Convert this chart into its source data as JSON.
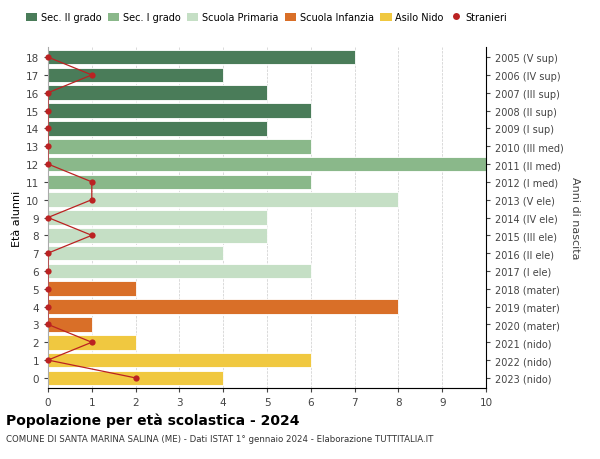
{
  "ages": [
    18,
    17,
    16,
    15,
    14,
    13,
    12,
    11,
    10,
    9,
    8,
    7,
    6,
    5,
    4,
    3,
    2,
    1,
    0
  ],
  "right_labels": [
    "2005 (V sup)",
    "2006 (IV sup)",
    "2007 (III sup)",
    "2008 (II sup)",
    "2009 (I sup)",
    "2010 (III med)",
    "2011 (II med)",
    "2012 (I med)",
    "2013 (V ele)",
    "2014 (IV ele)",
    "2015 (III ele)",
    "2016 (II ele)",
    "2017 (I ele)",
    "2018 (mater)",
    "2019 (mater)",
    "2020 (mater)",
    "2021 (nido)",
    "2022 (nido)",
    "2023 (nido)"
  ],
  "bar_values": [
    7,
    4,
    5,
    6,
    5,
    6,
    10,
    6,
    8,
    5,
    5,
    4,
    6,
    2,
    8,
    1,
    2,
    6,
    4
  ],
  "bar_colors": [
    "#4a7c59",
    "#4a7c59",
    "#4a7c59",
    "#4a7c59",
    "#4a7c59",
    "#8ab88a",
    "#8ab88a",
    "#8ab88a",
    "#c5dfc5",
    "#c5dfc5",
    "#c5dfc5",
    "#c5dfc5",
    "#c5dfc5",
    "#d96f28",
    "#d96f28",
    "#d96f28",
    "#f0c840",
    "#f0c840",
    "#f0c840"
  ],
  "stranieri_x": [
    0,
    1,
    0,
    0,
    0,
    0,
    0,
    1,
    1,
    0,
    1,
    0,
    0,
    0,
    0,
    0,
    1,
    0,
    2
  ],
  "legend_labels": [
    "Sec. II grado",
    "Sec. I grado",
    "Scuola Primaria",
    "Scuola Infanzia",
    "Asilo Nido",
    "Stranieri"
  ],
  "legend_colors": [
    "#4a7c59",
    "#8ab88a",
    "#c5dfc5",
    "#d96f28",
    "#f0c840",
    "#cc0000"
  ],
  "ylabel_left": "Età alunni",
  "ylabel_right": "Anni di nascita",
  "title": "Popolazione per età scolastica - 2024",
  "subtitle": "COMUNE DI SANTA MARINA SALINA (ME) - Dati ISTAT 1° gennaio 2024 - Elaborazione TUTTITALIA.IT",
  "xlim": [
    0,
    10
  ],
  "stranieri_color": "#bb2222",
  "background_color": "#ffffff",
  "grid_color": "#cccccc"
}
